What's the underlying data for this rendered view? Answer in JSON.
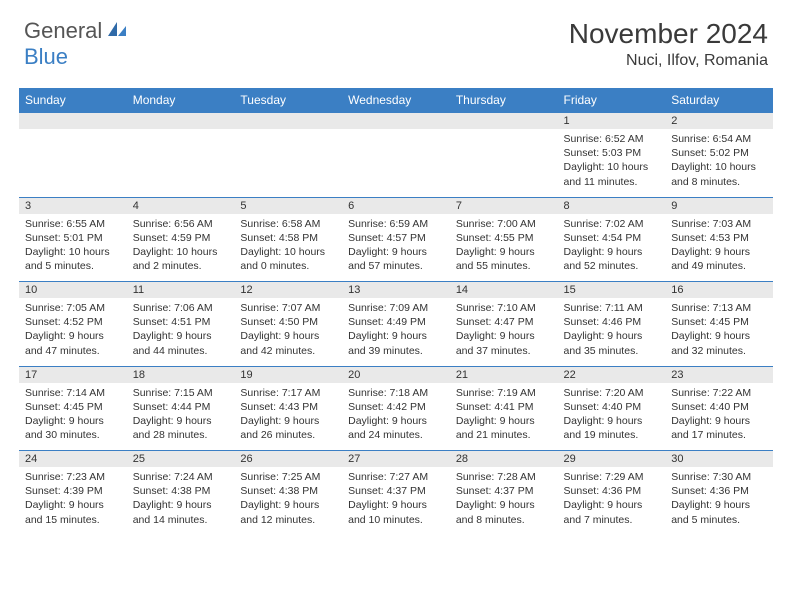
{
  "brand": {
    "part1": "General",
    "part2": "Blue"
  },
  "title": "November 2024",
  "location": "Nuci, Ilfov, Romania",
  "colors": {
    "header_bg": "#3b7fc4",
    "header_text": "#ffffff",
    "daynum_bg": "#e9e9e9",
    "border": "#3b7fc4",
    "text": "#333333",
    "logo_gray": "#555555",
    "logo_blue": "#3b7fc4",
    "page_bg": "#ffffff"
  },
  "weekdays": [
    "Sunday",
    "Monday",
    "Tuesday",
    "Wednesday",
    "Thursday",
    "Friday",
    "Saturday"
  ],
  "weeks": [
    [
      null,
      null,
      null,
      null,
      null,
      {
        "day": "1",
        "sunrise": "6:52 AM",
        "sunset": "5:03 PM",
        "daylight": "10 hours and 11 minutes."
      },
      {
        "day": "2",
        "sunrise": "6:54 AM",
        "sunset": "5:02 PM",
        "daylight": "10 hours and 8 minutes."
      }
    ],
    [
      {
        "day": "3",
        "sunrise": "6:55 AM",
        "sunset": "5:01 PM",
        "daylight": "10 hours and 5 minutes."
      },
      {
        "day": "4",
        "sunrise": "6:56 AM",
        "sunset": "4:59 PM",
        "daylight": "10 hours and 2 minutes."
      },
      {
        "day": "5",
        "sunrise": "6:58 AM",
        "sunset": "4:58 PM",
        "daylight": "10 hours and 0 minutes."
      },
      {
        "day": "6",
        "sunrise": "6:59 AM",
        "sunset": "4:57 PM",
        "daylight": "9 hours and 57 minutes."
      },
      {
        "day": "7",
        "sunrise": "7:00 AM",
        "sunset": "4:55 PM",
        "daylight": "9 hours and 55 minutes."
      },
      {
        "day": "8",
        "sunrise": "7:02 AM",
        "sunset": "4:54 PM",
        "daylight": "9 hours and 52 minutes."
      },
      {
        "day": "9",
        "sunrise": "7:03 AM",
        "sunset": "4:53 PM",
        "daylight": "9 hours and 49 minutes."
      }
    ],
    [
      {
        "day": "10",
        "sunrise": "7:05 AM",
        "sunset": "4:52 PM",
        "daylight": "9 hours and 47 minutes."
      },
      {
        "day": "11",
        "sunrise": "7:06 AM",
        "sunset": "4:51 PM",
        "daylight": "9 hours and 44 minutes."
      },
      {
        "day": "12",
        "sunrise": "7:07 AM",
        "sunset": "4:50 PM",
        "daylight": "9 hours and 42 minutes."
      },
      {
        "day": "13",
        "sunrise": "7:09 AM",
        "sunset": "4:49 PM",
        "daylight": "9 hours and 39 minutes."
      },
      {
        "day": "14",
        "sunrise": "7:10 AM",
        "sunset": "4:47 PM",
        "daylight": "9 hours and 37 minutes."
      },
      {
        "day": "15",
        "sunrise": "7:11 AM",
        "sunset": "4:46 PM",
        "daylight": "9 hours and 35 minutes."
      },
      {
        "day": "16",
        "sunrise": "7:13 AM",
        "sunset": "4:45 PM",
        "daylight": "9 hours and 32 minutes."
      }
    ],
    [
      {
        "day": "17",
        "sunrise": "7:14 AM",
        "sunset": "4:45 PM",
        "daylight": "9 hours and 30 minutes."
      },
      {
        "day": "18",
        "sunrise": "7:15 AM",
        "sunset": "4:44 PM",
        "daylight": "9 hours and 28 minutes."
      },
      {
        "day": "19",
        "sunrise": "7:17 AM",
        "sunset": "4:43 PM",
        "daylight": "9 hours and 26 minutes."
      },
      {
        "day": "20",
        "sunrise": "7:18 AM",
        "sunset": "4:42 PM",
        "daylight": "9 hours and 24 minutes."
      },
      {
        "day": "21",
        "sunrise": "7:19 AM",
        "sunset": "4:41 PM",
        "daylight": "9 hours and 21 minutes."
      },
      {
        "day": "22",
        "sunrise": "7:20 AM",
        "sunset": "4:40 PM",
        "daylight": "9 hours and 19 minutes."
      },
      {
        "day": "23",
        "sunrise": "7:22 AM",
        "sunset": "4:40 PM",
        "daylight": "9 hours and 17 minutes."
      }
    ],
    [
      {
        "day": "24",
        "sunrise": "7:23 AM",
        "sunset": "4:39 PM",
        "daylight": "9 hours and 15 minutes."
      },
      {
        "day": "25",
        "sunrise": "7:24 AM",
        "sunset": "4:38 PM",
        "daylight": "9 hours and 14 minutes."
      },
      {
        "day": "26",
        "sunrise": "7:25 AM",
        "sunset": "4:38 PM",
        "daylight": "9 hours and 12 minutes."
      },
      {
        "day": "27",
        "sunrise": "7:27 AM",
        "sunset": "4:37 PM",
        "daylight": "9 hours and 10 minutes."
      },
      {
        "day": "28",
        "sunrise": "7:28 AM",
        "sunset": "4:37 PM",
        "daylight": "9 hours and 8 minutes."
      },
      {
        "day": "29",
        "sunrise": "7:29 AM",
        "sunset": "4:36 PM",
        "daylight": "9 hours and 7 minutes."
      },
      {
        "day": "30",
        "sunrise": "7:30 AM",
        "sunset": "4:36 PM",
        "daylight": "9 hours and 5 minutes."
      }
    ]
  ],
  "labels": {
    "sunrise": "Sunrise:",
    "sunset": "Sunset:",
    "daylight": "Daylight:"
  }
}
